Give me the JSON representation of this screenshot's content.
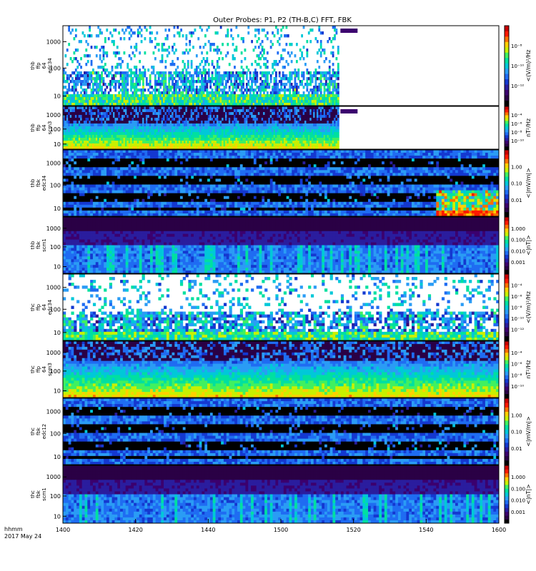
{
  "title": "Outer Probes: P1, P2 (TH-B,C) FFT, FBK",
  "xaxis": {
    "ticks": [
      "1400",
      "1420",
      "1440",
      "1500",
      "1520",
      "1540",
      "1600"
    ],
    "label_line1": "hhmm",
    "label_line2": "2017 May 24"
  },
  "colors": {
    "colormap": [
      "#000000",
      "#2a0045",
      "#3b006e",
      "#2a1d9e",
      "#1438d0",
      "#1f6cf2",
      "#2a9cf5",
      "#00c8d8",
      "#00e0a0",
      "#40f060",
      "#c8f000",
      "#ffd000",
      "#ff7000",
      "#ff1a00",
      "#c80000"
    ]
  },
  "chart_data": [
    {
      "type": "heatmap",
      "panel": 1,
      "ylabel": [
        "thb",
        "ffp",
        "64",
        "edc34"
      ],
      "yticks": [
        "10",
        "100",
        "1000"
      ],
      "colorbar_label": "<(V/m)²/Hz",
      "colorbar_ticks": [
        "10⁻⁸",
        "10⁻¹⁰",
        "10⁻¹²"
      ],
      "data_end": "1516",
      "pattern": "sparse"
    },
    {
      "type": "heatmap",
      "panel": 2,
      "ylabel": [
        "thb",
        "ffp",
        "64",
        "scm3"
      ],
      "yticks": [
        "10",
        "100",
        "1000"
      ],
      "colorbar_label": "nT²/Hz",
      "colorbar_ticks": [
        "10⁻⁴",
        "10⁻⁶",
        "10⁻⁸",
        "10⁻¹⁰"
      ],
      "data_end": "1516",
      "pattern": "scm"
    },
    {
      "type": "heatmap",
      "panel": 3,
      "ylabel": [
        "thb",
        "fbk",
        "edc34"
      ],
      "yticks": [
        "10",
        "100",
        "1000"
      ],
      "colorbar_label": "<|mV/m|>",
      "colorbar_ticks": [
        "1.00",
        "0.10",
        "0.01"
      ],
      "pattern": "fbk_edc"
    },
    {
      "type": "heatmap",
      "panel": 4,
      "ylabel": [
        "thb",
        "fbk",
        "scm1"
      ],
      "yticks": [
        "10",
        "100",
        "1000"
      ],
      "colorbar_label": "<|nT|>",
      "colorbar_ticks": [
        "1.000",
        "0.100",
        "0.010",
        "0.001"
      ],
      "pattern": "fbk_scm"
    },
    {
      "type": "heatmap",
      "panel": 5,
      "ylabel": [
        "thc",
        "ffp",
        "64",
        "edc34"
      ],
      "yticks": [
        "10",
        "100",
        "1000"
      ],
      "colorbar_label": "<(V/m)²/Hz",
      "colorbar_ticks": [
        "10⁻⁴",
        "10⁻⁶",
        "10⁻⁸",
        "10⁻¹⁰",
        "10⁻¹²"
      ],
      "pattern": "sparse"
    },
    {
      "type": "heatmap",
      "panel": 6,
      "ylabel": [
        "thc",
        "ffp",
        "64",
        "scm3"
      ],
      "yticks": [
        "10",
        "100",
        "1000"
      ],
      "colorbar_label": "nT²/Hz",
      "colorbar_ticks": [
        "10⁻⁴",
        "10⁻⁶",
        "10⁻⁸",
        "10⁻¹⁰"
      ],
      "pattern": "scm"
    },
    {
      "type": "heatmap",
      "panel": 7,
      "ylabel": [
        "thc",
        "fbk",
        "edc12"
      ],
      "yticks": [
        "10",
        "100",
        "1000"
      ],
      "colorbar_label": "<|mV/m|>",
      "colorbar_ticks": [
        "1.00",
        "0.10",
        "0.01"
      ],
      "pattern": "fbk_edc"
    },
    {
      "type": "heatmap",
      "panel": 8,
      "ylabel": [
        "thc",
        "fbk",
        "scm1"
      ],
      "yticks": [
        "10",
        "100",
        "1000"
      ],
      "colorbar_label": "<|nT|>",
      "colorbar_ticks": [
        "1.000",
        "0.100",
        "0.010",
        "0.001"
      ],
      "pattern": "fbk_scm"
    }
  ]
}
